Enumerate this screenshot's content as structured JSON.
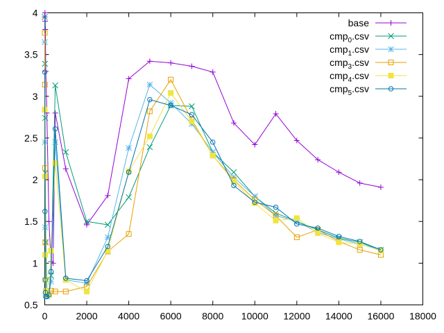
{
  "chart_data": {
    "type": "line",
    "title": "",
    "xlabel": "",
    "ylabel": "",
    "xlim": [
      0,
      18000
    ],
    "ylim": [
      0.5,
      4
    ],
    "xticks": [
      "0",
      "2000",
      "4000",
      "6000",
      "8000",
      "10000",
      "12000",
      "14000",
      "16000",
      "18000"
    ],
    "yticks": [
      "0.5",
      "1",
      "1.5",
      "2",
      "2.5",
      "3",
      "3.5",
      "4"
    ],
    "grid": false,
    "legend_position": "top-right",
    "series": [
      {
        "name": "base",
        "legend": {
          "main": "base",
          "sub": "",
          "rest": ""
        },
        "color": "#9400d3",
        "marker": "plus",
        "points": [
          [
            0,
            3.95
          ],
          [
            10,
            4.0
          ],
          [
            20,
            3.9
          ],
          [
            30,
            3.8
          ],
          [
            50,
            3.3
          ],
          [
            100,
            2.8
          ],
          [
            200,
            1.5
          ],
          [
            300,
            1.02
          ],
          [
            400,
            1.0
          ],
          [
            500,
            2.8
          ],
          [
            1000,
            2.13
          ],
          [
            2000,
            1.46
          ],
          [
            3000,
            1.81
          ],
          [
            4000,
            3.21
          ],
          [
            5000,
            3.42
          ],
          [
            6000,
            3.4
          ],
          [
            7000,
            3.36
          ],
          [
            8000,
            3.29
          ],
          [
            9000,
            2.68
          ],
          [
            10000,
            2.42
          ],
          [
            11000,
            2.79
          ],
          [
            12000,
            2.47
          ],
          [
            13000,
            2.24
          ],
          [
            14000,
            2.09
          ],
          [
            15000,
            1.96
          ],
          [
            16000,
            1.91
          ]
        ]
      },
      {
        "name": "cmp0.csv",
        "legend": {
          "main": "cmp",
          "sub": "0",
          "rest": ".csv"
        },
        "color": "#009e73",
        "marker": "x",
        "points": [
          [
            0,
            3.95
          ],
          [
            10,
            3.39
          ],
          [
            20,
            2.74
          ],
          [
            30,
            2.08
          ],
          [
            50,
            1.25
          ],
          [
            100,
            0.65
          ],
          [
            200,
            0.62
          ],
          [
            300,
            0.85
          ],
          [
            500,
            3.13
          ],
          [
            1000,
            2.33
          ],
          [
            2000,
            1.5
          ],
          [
            3000,
            1.46
          ],
          [
            4000,
            1.79
          ],
          [
            5000,
            2.39
          ],
          [
            6000,
            2.89
          ],
          [
            7000,
            2.88
          ],
          [
            8000,
            2.33
          ],
          [
            9000,
            2.09
          ],
          [
            10000,
            1.8
          ],
          [
            11000,
            1.6
          ],
          [
            12000,
            1.5
          ],
          [
            13000,
            1.4
          ],
          [
            14000,
            1.3
          ],
          [
            15000,
            1.25
          ],
          [
            16000,
            1.16
          ]
        ]
      },
      {
        "name": "cmp1.csv",
        "legend": {
          "main": "cmp",
          "sub": "1",
          "rest": ".csv"
        },
        "color": "#56b4e9",
        "marker": "star",
        "points": [
          [
            0,
            3.65
          ],
          [
            10,
            2.45
          ],
          [
            20,
            1.43
          ],
          [
            30,
            0.8
          ],
          [
            50,
            0.62
          ],
          [
            100,
            0.6
          ],
          [
            200,
            0.62
          ],
          [
            300,
            0.78
          ],
          [
            500,
            2.45
          ],
          [
            1000,
            0.8
          ],
          [
            2000,
            0.76
          ],
          [
            3000,
            1.31
          ],
          [
            4000,
            2.38
          ],
          [
            5000,
            3.14
          ],
          [
            6000,
            2.92
          ],
          [
            7000,
            2.67
          ],
          [
            8000,
            2.33
          ],
          [
            9000,
            2.03
          ],
          [
            10000,
            1.8
          ],
          [
            11000,
            1.57
          ],
          [
            12000,
            1.5
          ],
          [
            13000,
            1.37
          ],
          [
            14000,
            1.29
          ],
          [
            15000,
            1.23
          ],
          [
            16000,
            1.16
          ]
        ]
      },
      {
        "name": "cmp3.csv",
        "legend": {
          "main": "cmp",
          "sub": "3",
          "rest": ".csv"
        },
        "color": "#e69f00",
        "marker": "square",
        "points": [
          [
            0,
            3.76
          ],
          [
            10,
            3.14
          ],
          [
            20,
            2.14
          ],
          [
            30,
            1.25
          ],
          [
            50,
            0.67
          ],
          [
            100,
            0.62
          ],
          [
            200,
            0.62
          ],
          [
            300,
            0.67
          ],
          [
            500,
            0.66
          ],
          [
            1000,
            0.66
          ],
          [
            2000,
            0.72
          ],
          [
            3000,
            1.14
          ],
          [
            4000,
            1.35
          ],
          [
            5000,
            2.82
          ],
          [
            6000,
            3.2
          ],
          [
            7000,
            2.72
          ],
          [
            8000,
            2.29
          ],
          [
            9000,
            2.0
          ],
          [
            10000,
            1.76
          ],
          [
            11000,
            1.57
          ],
          [
            12000,
            1.31
          ],
          [
            13000,
            1.4
          ],
          [
            14000,
            1.26
          ],
          [
            15000,
            1.16
          ],
          [
            16000,
            1.1
          ]
        ]
      },
      {
        "name": "cmp4.csv",
        "legend": {
          "main": "cmp",
          "sub": "4",
          "rest": ".csv"
        },
        "color": "#f0e442",
        "marker": "filled-square",
        "points": [
          [
            0,
            2.84
          ],
          [
            10,
            2.04
          ],
          [
            20,
            1.1
          ],
          [
            30,
            0.8
          ],
          [
            50,
            0.67
          ],
          [
            100,
            0.62
          ],
          [
            200,
            0.62
          ],
          [
            300,
            1.15
          ],
          [
            500,
            2.2
          ],
          [
            1000,
            0.8
          ],
          [
            2000,
            0.66
          ],
          [
            3000,
            1.15
          ],
          [
            4000,
            2.1
          ],
          [
            5000,
            2.52
          ],
          [
            6000,
            3.04
          ],
          [
            7000,
            2.7
          ],
          [
            8000,
            2.29
          ],
          [
            9000,
            1.98
          ],
          [
            10000,
            1.72
          ],
          [
            11000,
            1.51
          ],
          [
            12000,
            1.54
          ],
          [
            13000,
            1.36
          ],
          [
            14000,
            1.25
          ],
          [
            15000,
            1.23
          ],
          [
            16000,
            1.15
          ]
        ]
      },
      {
        "name": "cmp5.csv",
        "legend": {
          "main": "cmp",
          "sub": "5",
          "rest": ".csv"
        },
        "color": "#0072b2",
        "marker": "circle",
        "points": [
          [
            0,
            3.29
          ],
          [
            10,
            1.62
          ],
          [
            20,
            0.8
          ],
          [
            30,
            0.65
          ],
          [
            50,
            0.6
          ],
          [
            100,
            0.6
          ],
          [
            200,
            0.62
          ],
          [
            300,
            0.9
          ],
          [
            500,
            2.61
          ],
          [
            1000,
            0.82
          ],
          [
            2000,
            0.79
          ],
          [
            3000,
            1.2
          ],
          [
            4000,
            2.09
          ],
          [
            5000,
            2.96
          ],
          [
            6000,
            2.89
          ],
          [
            7000,
            2.78
          ],
          [
            8000,
            2.45
          ],
          [
            9000,
            1.93
          ],
          [
            10000,
            1.73
          ],
          [
            11000,
            1.67
          ],
          [
            12000,
            1.47
          ],
          [
            13000,
            1.42
          ],
          [
            14000,
            1.32
          ],
          [
            15000,
            1.26
          ],
          [
            16000,
            1.16
          ]
        ]
      }
    ]
  }
}
